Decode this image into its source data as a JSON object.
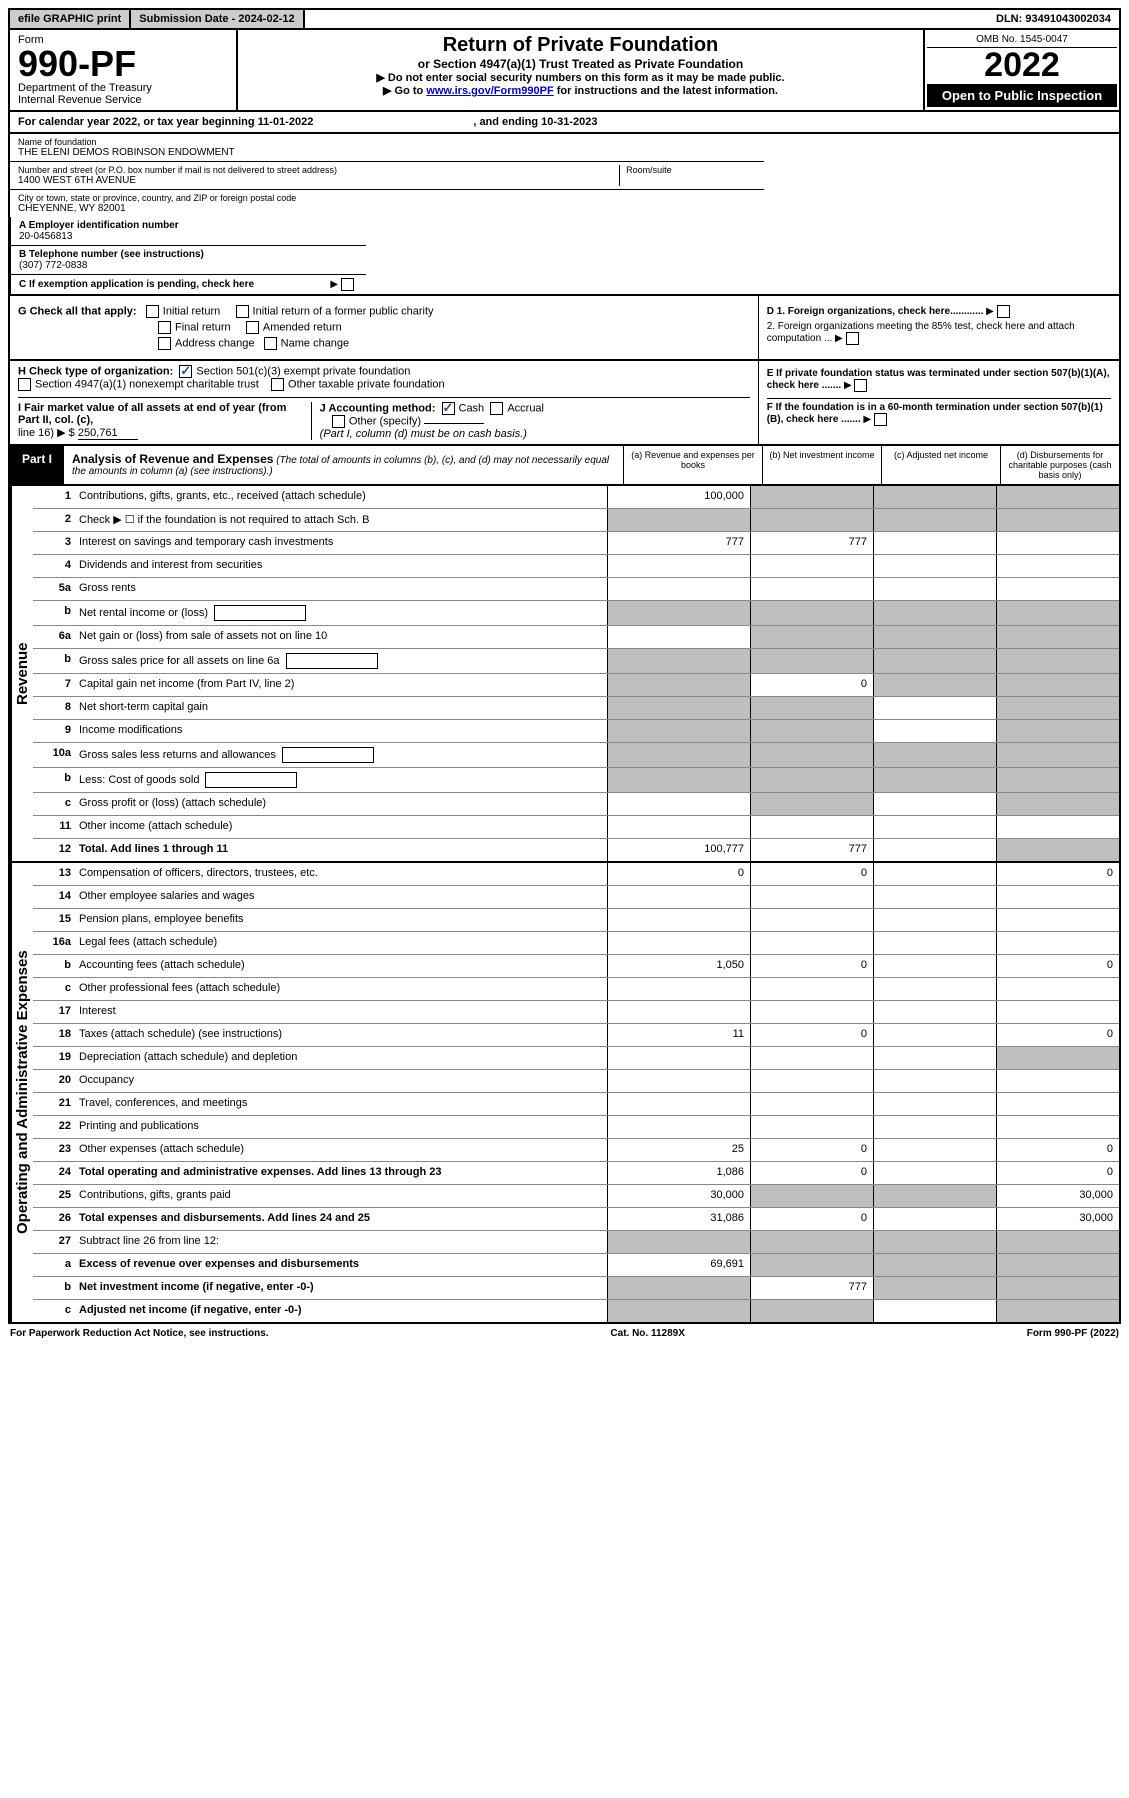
{
  "topbar": {
    "efile": "efile GRAPHIC print",
    "subdate_label": "Submission Date - ",
    "subdate": "2024-02-12",
    "dln_label": "DLN: ",
    "dln": "93491043002034"
  },
  "header": {
    "form_word": "Form",
    "form_no": "990-PF",
    "dept": "Department of the Treasury",
    "irs": "Internal Revenue Service",
    "title": "Return of Private Foundation",
    "subtitle": "or Section 4947(a)(1) Trust Treated as Private Foundation",
    "note1": "▶ Do not enter social security numbers on this form as it may be made public.",
    "note2_pre": "▶ Go to ",
    "note2_link": "www.irs.gov/Form990PF",
    "note2_post": " for instructions and the latest information.",
    "omb": "OMB No. 1545-0047",
    "year": "2022",
    "open": "Open to Public Inspection"
  },
  "calendar": {
    "text": "For calendar year 2022, or tax year beginning 11-01-2022",
    "ending_label": ", and ending ",
    "ending": "10-31-2023"
  },
  "identity": {
    "name_label": "Name of foundation",
    "name": "THE ELENI DEMOS ROBINSON ENDOWMENT",
    "addr_label": "Number and street (or P.O. box number if mail is not delivered to street address)",
    "addr": "1400 WEST 6TH AVENUE",
    "room_label": "Room/suite",
    "city_label": "City or town, state or province, country, and ZIP or foreign postal code",
    "city": "CHEYENNE, WY  82001",
    "ein_label": "A Employer identification number",
    "ein": "20-0456813",
    "phone_label": "B Telephone number (see instructions)",
    "phone": "(307) 772-0838",
    "c_label": "C If exemption application is pending, check here"
  },
  "checks": {
    "g_label": "G Check all that apply:",
    "g_initial": "Initial return",
    "g_initial_former": "Initial return of a former public charity",
    "g_final": "Final return",
    "g_amended": "Amended return",
    "g_address": "Address change",
    "g_name": "Name change",
    "d1": "D 1. Foreign organizations, check here............",
    "d2": "2. Foreign organizations meeting the 85% test, check here and attach computation ...",
    "h_label": "H Check type of organization:",
    "h_501c3": "Section 501(c)(3) exempt private foundation",
    "h_4947": "Section 4947(a)(1) nonexempt charitable trust",
    "h_other": "Other taxable private foundation",
    "e_label": "E If private foundation status was terminated under section 507(b)(1)(A), check here .......",
    "i_label": "I Fair market value of all assets at end of year (from Part II, col. (c),",
    "i_line": "line 16) ▶ $",
    "i_value": "250,761",
    "j_label": "J Accounting method:",
    "j_cash": "Cash",
    "j_accrual": "Accrual",
    "j_other": "Other (specify)",
    "j_note": "(Part I, column (d) must be on cash basis.)",
    "f_label": "F If the foundation is in a 60-month termination under section 507(b)(1)(B), check here ......."
  },
  "part1": {
    "label": "Part I",
    "title": "Analysis of Revenue and Expenses",
    "note": "(The total of amounts in columns (b), (c), and (d) may not necessarily equal the amounts in column (a) (see instructions).)",
    "col_a": "(a) Revenue and expenses per books",
    "col_b": "(b) Net investment income",
    "col_c": "(c) Adjusted net income",
    "col_d": "(d) Disbursements for charitable purposes (cash basis only)"
  },
  "sections": {
    "revenue": "Revenue",
    "expenses": "Operating and Administrative Expenses"
  },
  "rows": {
    "r1": {
      "n": "1",
      "label": "Contributions, gifts, grants, etc., received (attach schedule)",
      "a": "100,000",
      "b": "",
      "c": "",
      "d": "",
      "shade_b": true,
      "shade_c": true,
      "shade_d": true
    },
    "r2": {
      "n": "2",
      "label": "Check ▶ ☐ if the foundation is not required to attach Sch. B",
      "shade_all": true
    },
    "r3": {
      "n": "3",
      "label": "Interest on savings and temporary cash investments",
      "a": "777",
      "b": "777"
    },
    "r4": {
      "n": "4",
      "label": "Dividends and interest from securities"
    },
    "r5a": {
      "n": "5a",
      "label": "Gross rents"
    },
    "r5b": {
      "n": "b",
      "label": "Net rental income or (loss)",
      "inline_box": true,
      "shade_all": true
    },
    "r6a": {
      "n": "6a",
      "label": "Net gain or (loss) from sale of assets not on line 10",
      "shade_b": true,
      "shade_c": true,
      "shade_d": true
    },
    "r6b": {
      "n": "b",
      "label": "Gross sales price for all assets on line 6a",
      "inline_box": true,
      "shade_all": true
    },
    "r7": {
      "n": "7",
      "label": "Capital gain net income (from Part IV, line 2)",
      "b": "0",
      "shade_a": true,
      "shade_c": true,
      "shade_d": true
    },
    "r8": {
      "n": "8",
      "label": "Net short-term capital gain",
      "shade_a": true,
      "shade_b": true,
      "shade_d": true
    },
    "r9": {
      "n": "9",
      "label": "Income modifications",
      "shade_a": true,
      "shade_b": true,
      "shade_d": true
    },
    "r10a": {
      "n": "10a",
      "label": "Gross sales less returns and allowances",
      "inline_box": true,
      "shade_all": true
    },
    "r10b": {
      "n": "b",
      "label": "Less: Cost of goods sold",
      "inline_box": true,
      "shade_all": true
    },
    "r10c": {
      "n": "c",
      "label": "Gross profit or (loss) (attach schedule)",
      "shade_b": true,
      "shade_d": true
    },
    "r11": {
      "n": "11",
      "label": "Other income (attach schedule)"
    },
    "r12": {
      "n": "12",
      "label": "Total. Add lines 1 through 11",
      "bold": true,
      "a": "100,777",
      "b": "777",
      "shade_d": true
    },
    "r13": {
      "n": "13",
      "label": "Compensation of officers, directors, trustees, etc.",
      "a": "0",
      "b": "0",
      "d": "0"
    },
    "r14": {
      "n": "14",
      "label": "Other employee salaries and wages"
    },
    "r15": {
      "n": "15",
      "label": "Pension plans, employee benefits"
    },
    "r16a": {
      "n": "16a",
      "label": "Legal fees (attach schedule)"
    },
    "r16b": {
      "n": "b",
      "label": "Accounting fees (attach schedule)",
      "a": "1,050",
      "b": "0",
      "d": "0"
    },
    "r16c": {
      "n": "c",
      "label": "Other professional fees (attach schedule)"
    },
    "r17": {
      "n": "17",
      "label": "Interest"
    },
    "r18": {
      "n": "18",
      "label": "Taxes (attach schedule) (see instructions)",
      "a": "11",
      "b": "0",
      "d": "0"
    },
    "r19": {
      "n": "19",
      "label": "Depreciation (attach schedule) and depletion",
      "shade_d": true
    },
    "r20": {
      "n": "20",
      "label": "Occupancy"
    },
    "r21": {
      "n": "21",
      "label": "Travel, conferences, and meetings"
    },
    "r22": {
      "n": "22",
      "label": "Printing and publications"
    },
    "r23": {
      "n": "23",
      "label": "Other expenses (attach schedule)",
      "a": "25",
      "b": "0",
      "d": "0"
    },
    "r24": {
      "n": "24",
      "label": "Total operating and administrative expenses. Add lines 13 through 23",
      "bold": true,
      "a": "1,086",
      "b": "0",
      "d": "0"
    },
    "r25": {
      "n": "25",
      "label": "Contributions, gifts, grants paid",
      "a": "30,000",
      "d": "30,000",
      "shade_b": true,
      "shade_c": true
    },
    "r26": {
      "n": "26",
      "label": "Total expenses and disbursements. Add lines 24 and 25",
      "bold": true,
      "a": "31,086",
      "b": "0",
      "d": "30,000"
    },
    "r27": {
      "n": "27",
      "label": "Subtract line 26 from line 12:",
      "shade_all": true
    },
    "r27a": {
      "n": "a",
      "label": "Excess of revenue over expenses and disbursements",
      "bold": true,
      "a": "69,691",
      "shade_b": true,
      "shade_c": true,
      "shade_d": true
    },
    "r27b": {
      "n": "b",
      "label": "Net investment income (if negative, enter -0-)",
      "bold": true,
      "b": "777",
      "shade_a": true,
      "shade_c": true,
      "shade_d": true
    },
    "r27c": {
      "n": "c",
      "label": "Adjusted net income (if negative, enter -0-)",
      "bold": true,
      "shade_a": true,
      "shade_b": true,
      "shade_d": true
    }
  },
  "footer": {
    "left": "For Paperwork Reduction Act Notice, see instructions.",
    "center": "Cat. No. 11289X",
    "right": "Form 990-PF (2022)"
  }
}
